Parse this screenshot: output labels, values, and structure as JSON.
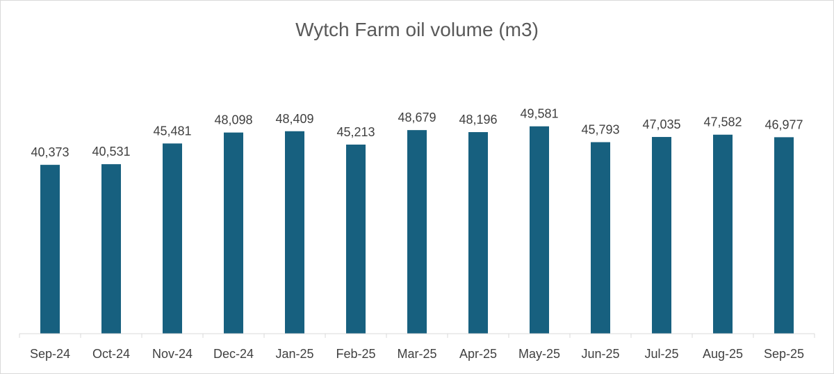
{
  "chart_data": {
    "type": "bar",
    "title": "Wytch Farm oil volume (m3)",
    "xlabel": "",
    "ylabel": "",
    "categories": [
      "Sep-24",
      "Oct-24",
      "Nov-24",
      "Dec-24",
      "Jan-25",
      "Feb-25",
      "Mar-25",
      "Apr-25",
      "May-25",
      "Jun-25",
      "Jul-25",
      "Aug-25",
      "Sep-25"
    ],
    "values": [
      40373,
      40531,
      45481,
      48098,
      48409,
      45213,
      48679,
      48196,
      49581,
      45793,
      47035,
      47582,
      46977
    ],
    "value_labels": [
      "40,373",
      "40,531",
      "45,481",
      "48,098",
      "48,409",
      "45,213",
      "48,679",
      "48,196",
      "49,581",
      "45,793",
      "47,035",
      "47,582",
      "46,977"
    ],
    "ylim": [
      0,
      62000
    ],
    "grid": false,
    "legend": "none",
    "bar_color": "#17607f"
  }
}
